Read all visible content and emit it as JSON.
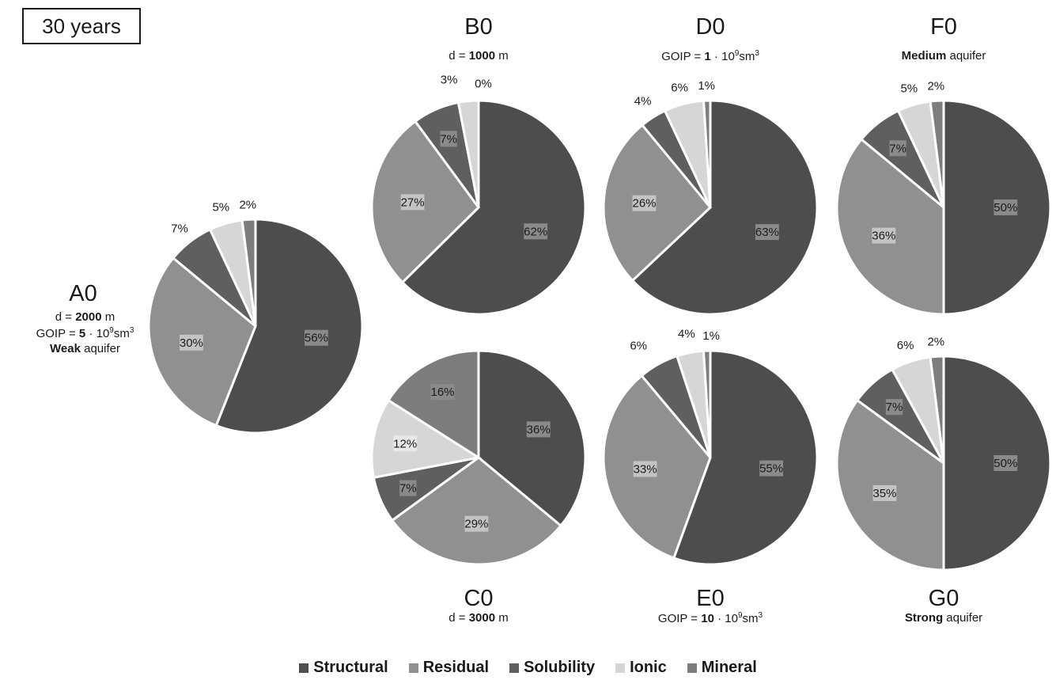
{
  "header": {
    "period_label": "30 years"
  },
  "legend": [
    {
      "name": "Structural",
      "color": "#4d4d4d"
    },
    {
      "name": "Residual",
      "color": "#909090"
    },
    {
      "name": "Solubility",
      "color": "#5f5f5f"
    },
    {
      "name": "Ionic",
      "color": "#d6d6d6"
    },
    {
      "name": "Mineral",
      "color": "#7d7d7d"
    }
  ],
  "chart_data": [
    {
      "type": "pie",
      "title": "A0",
      "subtitle_lines": [
        {
          "pre": "d = ",
          "bold": "2000",
          "post": " m"
        },
        {
          "pre": "GOIP = ",
          "bold": "5",
          "post": " · 10",
          "sup1": "9",
          "post2": "sm",
          "sup2": "3"
        },
        {
          "pre": "",
          "bold": "Weak",
          "post": " aquifer"
        }
      ],
      "categories": [
        "Structural",
        "Residual",
        "Solubility",
        "Ionic",
        "Mineral"
      ],
      "values": [
        56,
        30,
        7,
        5,
        2
      ],
      "labels": [
        "56%",
        "30%",
        "7%",
        "5%",
        "2%"
      ]
    },
    {
      "type": "pie",
      "title": "B0",
      "subtitle_lines": [
        {
          "pre": "d = ",
          "bold": "1000",
          "post": " m"
        }
      ],
      "categories": [
        "Structural",
        "Residual",
        "Solubility",
        "Ionic",
        "Mineral"
      ],
      "values": [
        62,
        27,
        7,
        3,
        0
      ],
      "labels": [
        "62%",
        "27%",
        "7%",
        "3%",
        "0%"
      ]
    },
    {
      "type": "pie",
      "title": "C0",
      "subtitle_lines": [
        {
          "pre": "d = ",
          "bold": "3000",
          "post": " m"
        }
      ],
      "categories": [
        "Structural",
        "Residual",
        "Solubility",
        "Ionic",
        "Mineral"
      ],
      "values": [
        36,
        29,
        7,
        12,
        16
      ],
      "labels": [
        "36%",
        "29%",
        "7%",
        "12%",
        "16%"
      ]
    },
    {
      "type": "pie",
      "title": "D0",
      "subtitle_lines": [
        {
          "pre": "GOIP = ",
          "bold": "1",
          "post": " · 10",
          "sup1": "9",
          "post2": "sm",
          "sup2": "3"
        }
      ],
      "categories": [
        "Structural",
        "Residual",
        "Solubility",
        "Ionic",
        "Mineral"
      ],
      "values": [
        63,
        26,
        4,
        6,
        1
      ],
      "labels": [
        "63%",
        "26%",
        "4%",
        "6%",
        "1%"
      ]
    },
    {
      "type": "pie",
      "title": "E0",
      "subtitle_lines": [
        {
          "pre": "GOIP = ",
          "bold": "10",
          "post": " · 10",
          "sup1": "9",
          "post2": "sm",
          "sup2": "3"
        }
      ],
      "categories": [
        "Structural",
        "Residual",
        "Solubility",
        "Ionic",
        "Mineral"
      ],
      "values": [
        55,
        33,
        6,
        4,
        1
      ],
      "labels": [
        "55%",
        "33%",
        "6%",
        "4%",
        "1%"
      ]
    },
    {
      "type": "pie",
      "title": "F0",
      "subtitle_lines": [
        {
          "pre": "",
          "bold": "Medium",
          "post": " aquifer"
        }
      ],
      "categories": [
        "Structural",
        "Residual",
        "Solubility",
        "Ionic",
        "Mineral"
      ],
      "values": [
        50,
        36,
        7,
        5,
        2
      ],
      "labels": [
        "50%",
        "36%",
        "7%",
        "5%",
        "2%"
      ]
    },
    {
      "type": "pie",
      "title": "G0",
      "subtitle_lines": [
        {
          "pre": "",
          "bold": "Strong",
          "post": " aquifer"
        }
      ],
      "categories": [
        "Structural",
        "Residual",
        "Solubility",
        "Ionic",
        "Mineral"
      ],
      "values": [
        50,
        35,
        7,
        6,
        2
      ],
      "labels": [
        "50%",
        "35%",
        "7%",
        "6%",
        "2%"
      ]
    }
  ]
}
